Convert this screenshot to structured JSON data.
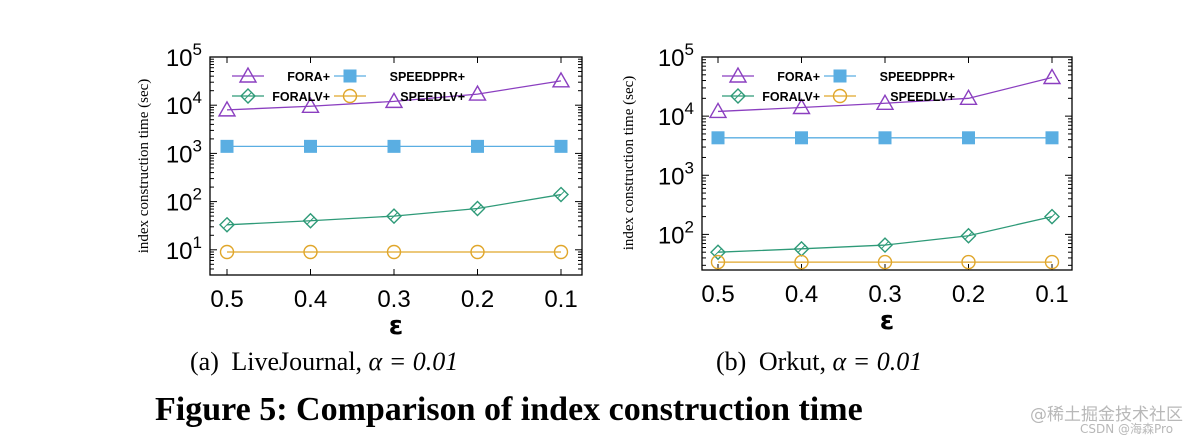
{
  "figure": {
    "caption": "Figure 5: Comparison of index construction time",
    "watermark_line1": "@稀土掘金技术社区",
    "watermark_line2": "CSDN @海森Pro"
  },
  "colors": {
    "FORA+": "#8b3fc0",
    "SPEEDPPR+": "#5aaee2",
    "FORALV+": "#2e9a78",
    "SPEEDLV+": "#e0a62a",
    "axis": "#000000"
  },
  "chart_data": [
    {
      "type": "line",
      "yscale": "log",
      "ylim": [
        3,
        100000
      ],
      "ytick_values": [
        10,
        100,
        1000,
        10000,
        100000
      ],
      "ytick_base": "10",
      "ytick_exps": [
        "1",
        "2",
        "3",
        "4",
        "5"
      ],
      "ylabel": "index construction time (sec)",
      "xlabel": "ε",
      "categories": [
        "0.5",
        "0.4",
        "0.3",
        "0.2",
        "0.1"
      ],
      "subcaption_prefix": "(a)",
      "subcaption_dataset": "LiveJournal,",
      "subcaption_param": "α = 0.01",
      "legend_position": "top-left",
      "series": [
        {
          "name": "FORA+",
          "marker": "triangle",
          "values": [
            8000,
            9500,
            12000,
            17000,
            32000
          ]
        },
        {
          "name": "SPEEDPPR+",
          "marker": "square",
          "values": [
            1400,
            1400,
            1400,
            1400,
            1400
          ]
        },
        {
          "name": "FORALV+",
          "marker": "diamond",
          "values": [
            33,
            40,
            50,
            72,
            140
          ]
        },
        {
          "name": "SPEEDLV+",
          "marker": "circle",
          "values": [
            9,
            9,
            9,
            9,
            9
          ]
        }
      ]
    },
    {
      "type": "line",
      "yscale": "log",
      "ylim": [
        25,
        100000
      ],
      "ytick_values": [
        100,
        1000,
        10000,
        100000
      ],
      "ytick_base": "10",
      "ytick_exps": [
        "2",
        "3",
        "4",
        "5"
      ],
      "ylabel": "index construction time (sec)",
      "xlabel": "ε",
      "categories": [
        "0.5",
        "0.4",
        "0.3",
        "0.2",
        "0.1"
      ],
      "subcaption_prefix": "(b)",
      "subcaption_dataset": "Orkut,",
      "subcaption_param": "α = 0.01",
      "legend_position": "top-left",
      "series": [
        {
          "name": "FORA+",
          "marker": "triangle",
          "values": [
            12000,
            14000,
            16500,
            20000,
            45000
          ]
        },
        {
          "name": "SPEEDPPR+",
          "marker": "square",
          "values": [
            4300,
            4300,
            4300,
            4300,
            4300
          ]
        },
        {
          "name": "FORALV+",
          "marker": "diamond",
          "values": [
            50,
            57,
            66,
            95,
            200
          ]
        },
        {
          "name": "SPEEDLV+",
          "marker": "circle",
          "values": [
            34,
            34,
            34,
            34,
            34
          ]
        }
      ]
    }
  ]
}
